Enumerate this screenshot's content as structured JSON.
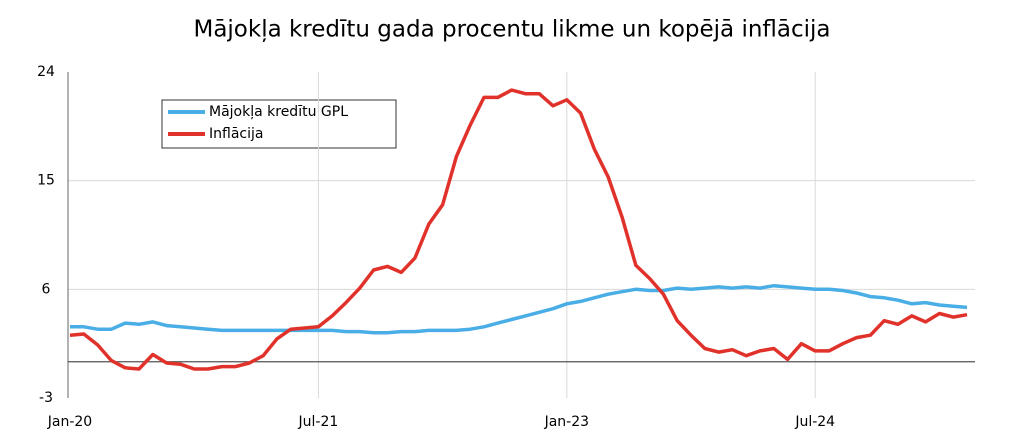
{
  "chart_data": {
    "type": "line",
    "title": "Mājokļa kredītu gada procentu likme un kopējā inflācija",
    "categories": [
      "Jan-20",
      null,
      null,
      null,
      null,
      null,
      null,
      null,
      null,
      null,
      null,
      null,
      null,
      null,
      null,
      null,
      null,
      null,
      "Jul-21",
      null,
      null,
      null,
      null,
      null,
      null,
      null,
      null,
      null,
      null,
      null,
      null,
      null,
      null,
      null,
      null,
      null,
      "Jan-23",
      null,
      null,
      null,
      null,
      null,
      null,
      null,
      null,
      null,
      null,
      null,
      null,
      null,
      null,
      null,
      null,
      null,
      "Jul-24",
      null,
      null,
      null,
      null,
      null,
      null,
      null,
      null,
      null,
      null,
      null
    ],
    "series": [
      {
        "name": "Mājokļa kredītu GPL",
        "color": "#4aaee6",
        "values": [
          2.9,
          2.9,
          2.7,
          2.7,
          3.2,
          3.1,
          3.3,
          3.0,
          2.9,
          2.8,
          2.7,
          2.6,
          2.6,
          2.6,
          2.6,
          2.6,
          2.6,
          2.6,
          2.6,
          2.6,
          2.5,
          2.5,
          2.4,
          2.4,
          2.5,
          2.5,
          2.6,
          2.6,
          2.6,
          2.7,
          2.9,
          3.2,
          3.5,
          3.8,
          4.1,
          4.4,
          4.8,
          5.0,
          5.3,
          5.6,
          5.8,
          6.0,
          5.9,
          5.9,
          6.1,
          6.0,
          6.1,
          6.2,
          6.1,
          6.2,
          6.1,
          6.3,
          6.2,
          6.1,
          6.0,
          6.0,
          5.9,
          5.7,
          5.4,
          5.3,
          5.1,
          4.8,
          4.9,
          4.7,
          4.6,
          4.5
        ]
      },
      {
        "name": "Inflācija",
        "color": "#e0322a",
        "values": [
          2.2,
          2.3,
          1.4,
          0.1,
          -0.5,
          -0.6,
          0.6,
          -0.1,
          -0.2,
          -0.6,
          -0.6,
          -0.4,
          -0.4,
          -0.1,
          0.5,
          1.9,
          2.7,
          2.8,
          2.9,
          3.8,
          4.9,
          6.1,
          7.6,
          7.9,
          7.4,
          8.6,
          11.4,
          13.0,
          17.0,
          19.6,
          21.9,
          21.9,
          22.5,
          22.2,
          22.2,
          21.2,
          21.7,
          20.6,
          17.6,
          15.3,
          12.0,
          8.0,
          6.9,
          5.6,
          3.4,
          2.2,
          1.1,
          0.8,
          1.0,
          0.5,
          0.9,
          1.1,
          0.2,
          1.5,
          0.9,
          0.9,
          1.5,
          2.0,
          2.2,
          3.4,
          3.1,
          3.8,
          3.3,
          4.0,
          3.7,
          3.9
        ]
      }
    ],
    "ylim": [
      -3,
      24
    ],
    "yticks": [
      -3,
      6,
      15,
      24
    ],
    "grid": true
  }
}
